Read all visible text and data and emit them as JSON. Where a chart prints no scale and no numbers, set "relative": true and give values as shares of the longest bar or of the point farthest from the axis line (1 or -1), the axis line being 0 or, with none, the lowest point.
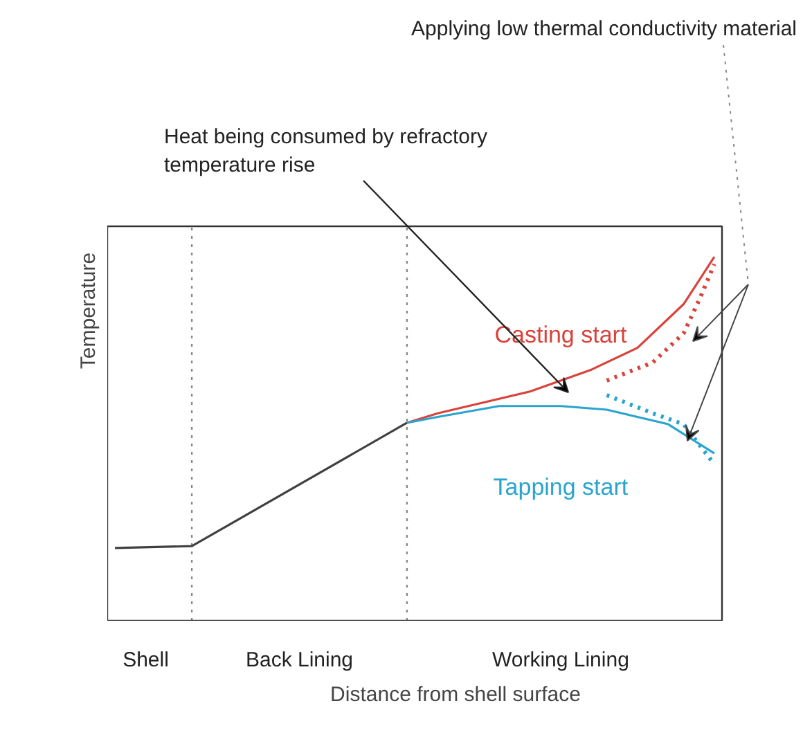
{
  "chart_data": {
    "type": "line",
    "relative": true,
    "xlabel": "Distance from shell surface",
    "ylabel": "Temperature",
    "categories": [
      null,
      null,
      "Shell",
      null,
      null,
      null,
      null,
      null,
      null,
      null,
      null,
      null,
      "Back Lining",
      null,
      null,
      null,
      null,
      null,
      null,
      null,
      null,
      null,
      null,
      null,
      null,
      null,
      null,
      null,
      null,
      "Working Lining",
      null,
      null,
      null,
      null,
      null,
      null,
      null,
      null,
      null,
      null
    ],
    "series": [
      {
        "color": "#404040",
        "line_style": "solid",
        "values": [
          0.2,
          null,
          null,
          null,
          null,
          0.205,
          null,
          null,
          null,
          null,
          null,
          null,
          null,
          null,
          null,
          null,
          null,
          null,
          null,
          0.544,
          null,
          null,
          null,
          null,
          null,
          null,
          null,
          null,
          null,
          null,
          null,
          null,
          null,
          null,
          null,
          null,
          null,
          null,
          null,
          null
        ]
      },
      {
        "name": "Casting start",
        "color": "#d9433b",
        "line_style": "solid",
        "values": [
          null,
          null,
          null,
          null,
          null,
          null,
          null,
          null,
          null,
          null,
          null,
          null,
          null,
          null,
          null,
          null,
          null,
          null,
          null,
          0.544,
          null,
          0.57,
          null,
          null,
          null,
          null,
          null,
          0.63,
          null,
          null,
          null,
          0.69,
          null,
          null,
          0.75,
          null,
          null,
          0.87,
          null,
          1.0
        ]
      },
      {
        "color": "#d9433b",
        "line_style": "dotted",
        "values": [
          null,
          null,
          null,
          null,
          null,
          null,
          null,
          null,
          null,
          null,
          null,
          null,
          null,
          null,
          null,
          null,
          null,
          null,
          null,
          null,
          null,
          null,
          null,
          null,
          null,
          null,
          null,
          null,
          null,
          null,
          null,
          null,
          0.66,
          null,
          null,
          0.71,
          null,
          0.79,
          0.88,
          0.98
        ]
      },
      {
        "name": "Tapping start",
        "color": "#2aa4cf",
        "line_style": "solid",
        "values": [
          null,
          null,
          null,
          null,
          null,
          null,
          null,
          null,
          null,
          null,
          null,
          null,
          null,
          null,
          null,
          null,
          null,
          null,
          null,
          0.544,
          null,
          0.56,
          null,
          null,
          null,
          0.59,
          null,
          null,
          null,
          0.59,
          null,
          null,
          0.58,
          null,
          null,
          null,
          0.54,
          null,
          null,
          0.46
        ]
      },
      {
        "color": "#2aa4cf",
        "line_style": "dotted",
        "values": [
          null,
          null,
          null,
          null,
          null,
          null,
          null,
          null,
          null,
          null,
          null,
          null,
          null,
          null,
          null,
          null,
          null,
          null,
          null,
          null,
          null,
          null,
          null,
          null,
          null,
          null,
          null,
          null,
          null,
          null,
          null,
          null,
          0.62,
          null,
          null,
          0.57,
          null,
          0.54,
          null,
          0.43
        ]
      }
    ],
    "annotations": [
      "Applying low thermal conductivity material",
      "Heat being consumed by refractory temperature rise"
    ],
    "marker": "none"
  }
}
